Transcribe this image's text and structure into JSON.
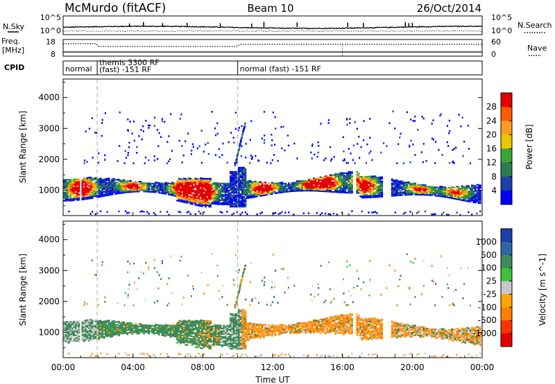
{
  "header": {
    "station": "McMurdo (fitACF)",
    "beam": "Beam 10",
    "date": "26/Oct/2014"
  },
  "status_panels": {
    "nsky_label": "N.Sky",
    "nsky_ticks": [
      "10^5",
      "10^0"
    ],
    "nsearch_label": "N.Search",
    "freq_label_line1": "Freq.",
    "freq_label_line2": "[MHz]",
    "freq_ticks": [
      "18",
      "8"
    ],
    "nave_label": "Nave",
    "nave_ticks": [
      "60",
      "0"
    ],
    "cpid_label": "CPID",
    "modes": [
      {
        "start_hour": 0.0,
        "end_hour": 1.95,
        "line1": "normal",
        "line2": ""
      },
      {
        "start_hour": 1.95,
        "end_hour": 10.0,
        "line1": "themis 3300 RF",
        "line2": "(fast) -151 RF"
      },
      {
        "start_hour": 10.0,
        "end_hour": 24.0,
        "line1": "normal (fast) -151 RF",
        "line2": ""
      }
    ]
  },
  "chart_data": [
    {
      "type": "heatmap",
      "panel": "power",
      "ylabel": "Slant Range [km]",
      "yticks": [
        1000,
        2000,
        3000,
        4000
      ],
      "ylim": [
        180,
        4600
      ],
      "colorbar_label": "Power [dB]",
      "colorbar_ticks": [
        "28",
        "24",
        "20",
        "16",
        "12",
        "8",
        "4"
      ],
      "colorbar_colors": [
        "#e40000",
        "#ff5a00",
        "#ff9b1e",
        "#e8c800",
        "#3aa33a",
        "#2e7d4f",
        "#1c3fa8",
        "#0000ff"
      ],
      "main_band_km": [
        500,
        1800
      ],
      "scatter_band_km": [
        1900,
        3600
      ]
    },
    {
      "type": "heatmap",
      "panel": "velocity",
      "ylabel": "Slant Range [km]",
      "yticks": [
        1000,
        2000,
        3000,
        4000
      ],
      "ylim": [
        180,
        4600
      ],
      "colorbar_label": "Velocity [m s^-1]",
      "colorbar_ticks": [
        "1000",
        "500",
        "100",
        "25",
        "-25",
        "-100",
        "-500",
        "-1000"
      ],
      "colorbar_colors": [
        "#1c3fa8",
        "#2c66a8",
        "#3f8a5a",
        "#3cc23c",
        "#c8c8c8",
        "#ffa500",
        "#ff7f00",
        "#ff3300",
        "#e40000"
      ],
      "main_band_km": [
        500,
        1800
      ]
    }
  ],
  "x_axis": {
    "label": "Time UT",
    "ticks": [
      "00:00",
      "04:00",
      "08:00",
      "12:00",
      "16:00",
      "20:00",
      "00:00"
    ],
    "range_hours": [
      0,
      24
    ]
  },
  "colors": {
    "dashed_mode_lines": "#aaaaaa"
  }
}
